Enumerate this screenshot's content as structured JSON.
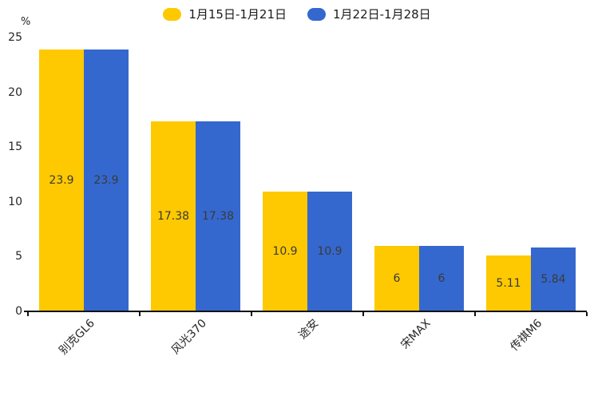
{
  "chart_data": {
    "type": "bar",
    "title": "",
    "ylabel": "%",
    "xlabel": "",
    "categories": [
      "别克GL6",
      "风光370",
      "途安",
      "宋MAX",
      "传祺M6"
    ],
    "series": [
      {
        "name": "1月15日-1月21日",
        "color": "#FEC900",
        "values": [
          23.9,
          17.38,
          10.9,
          6,
          5.11
        ]
      },
      {
        "name": "1月22日-1月28日",
        "color": "#3568CE",
        "values": [
          23.9,
          17.38,
          10.9,
          6,
          5.84
        ]
      }
    ],
    "ylim": [
      0,
      25
    ],
    "yticks": [
      0,
      5,
      10,
      15,
      20,
      25
    ],
    "grid": false,
    "legend_position": "top",
    "bar_value_labels_inside": true,
    "category_label_rotation_deg": 45
  },
  "colors": {
    "background": "#ffffff",
    "axis": "#111111",
    "tick_text": "#262626",
    "bar_value_text": "#3a3a3a",
    "legend_text": "#1a1a1a"
  }
}
